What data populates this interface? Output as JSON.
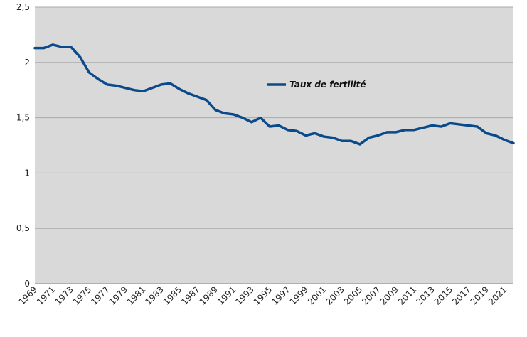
{
  "chart_data": {
    "type": "line",
    "title": "",
    "xlabel": "",
    "ylabel": "",
    "ylim": [
      0,
      2.5
    ],
    "y_ticks": [
      "0",
      "0,5",
      "1",
      "1,5",
      "2",
      "2,5"
    ],
    "y_tick_values": [
      0,
      0.5,
      1,
      1.5,
      2,
      2.5
    ],
    "grid": true,
    "legend_position": "center",
    "colors": {
      "series": "#0b4a8a",
      "plot_bg": "#d9d9d9",
      "grid": "#aaaaaa"
    },
    "x": [
      1969,
      1970,
      1971,
      1972,
      1973,
      1974,
      1975,
      1976,
      1977,
      1978,
      1979,
      1980,
      1981,
      1982,
      1983,
      1984,
      1985,
      1986,
      1987,
      1988,
      1989,
      1990,
      1991,
      1992,
      1993,
      1994,
      1995,
      1996,
      1997,
      1998,
      1999,
      2000,
      2001,
      2002,
      2003,
      2004,
      2005,
      2006,
      2007,
      2008,
      2009,
      2010,
      2011,
      2012,
      2013,
      2014,
      2015,
      2016,
      2017,
      2018,
      2019,
      2020,
      2021,
      2022
    ],
    "x_tick_labels": [
      "1969",
      "1971",
      "1973",
      "1975",
      "1977",
      "1979",
      "1981",
      "1983",
      "1985",
      "1987",
      "1989",
      "1991",
      "1993",
      "1995",
      "1997",
      "1999",
      "2001",
      "2003",
      "2005",
      "2007",
      "2009",
      "2011",
      "2013",
      "2015",
      "2017",
      "2019",
      "2021"
    ],
    "series": [
      {
        "name": "Taux de fertilité",
        "values": [
          2.13,
          2.13,
          2.16,
          2.14,
          2.14,
          2.05,
          1.91,
          1.85,
          1.8,
          1.79,
          1.77,
          1.75,
          1.74,
          1.77,
          1.8,
          1.81,
          1.76,
          1.72,
          1.69,
          1.66,
          1.57,
          1.54,
          1.53,
          1.5,
          1.46,
          1.5,
          1.42,
          1.43,
          1.39,
          1.38,
          1.34,
          1.36,
          1.33,
          1.32,
          1.29,
          1.29,
          1.26,
          1.32,
          1.34,
          1.37,
          1.37,
          1.39,
          1.39,
          1.41,
          1.43,
          1.42,
          1.45,
          1.44,
          1.43,
          1.42,
          1.36,
          1.34,
          1.3,
          1.27
        ]
      }
    ]
  }
}
